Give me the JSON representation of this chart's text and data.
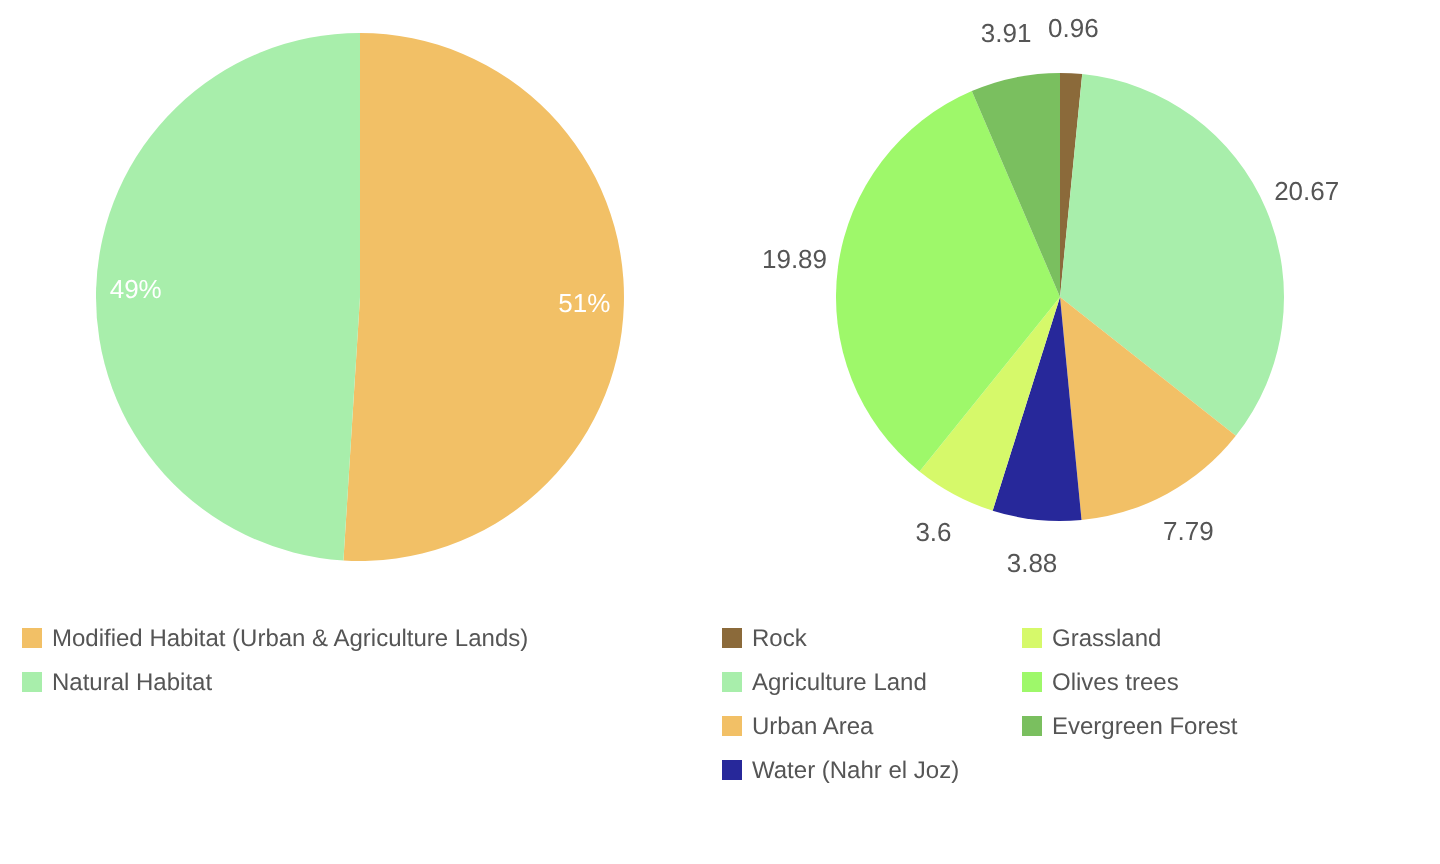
{
  "chart_data": [
    {
      "type": "pie",
      "categories": [
        "Modified Habitat (Urban & Agriculture Lands)",
        "Natural Habitat"
      ],
      "values": [
        51,
        49
      ],
      "colors": [
        "#f2c066",
        "#a8eeab"
      ],
      "value_labels": [
        "51%",
        "49%"
      ],
      "legend": "bottom left"
    },
    {
      "type": "pie",
      "categories": [
        "Rock",
        "Agriculture Land",
        "Urban Area",
        "Water (Nahr el Joz)",
        "Grassland",
        "Olives trees",
        "Evergreen Forest"
      ],
      "values": [
        0.96,
        20.67,
        7.79,
        3.88,
        3.6,
        19.89,
        3.91
      ],
      "colors": [
        "#8b6a3a",
        "#a8eeab",
        "#f2c066",
        "#27289a",
        "#d6f96a",
        "#9ef86a",
        "#7abf5f"
      ],
      "data_labels": true,
      "legend": "bottom left"
    }
  ]
}
